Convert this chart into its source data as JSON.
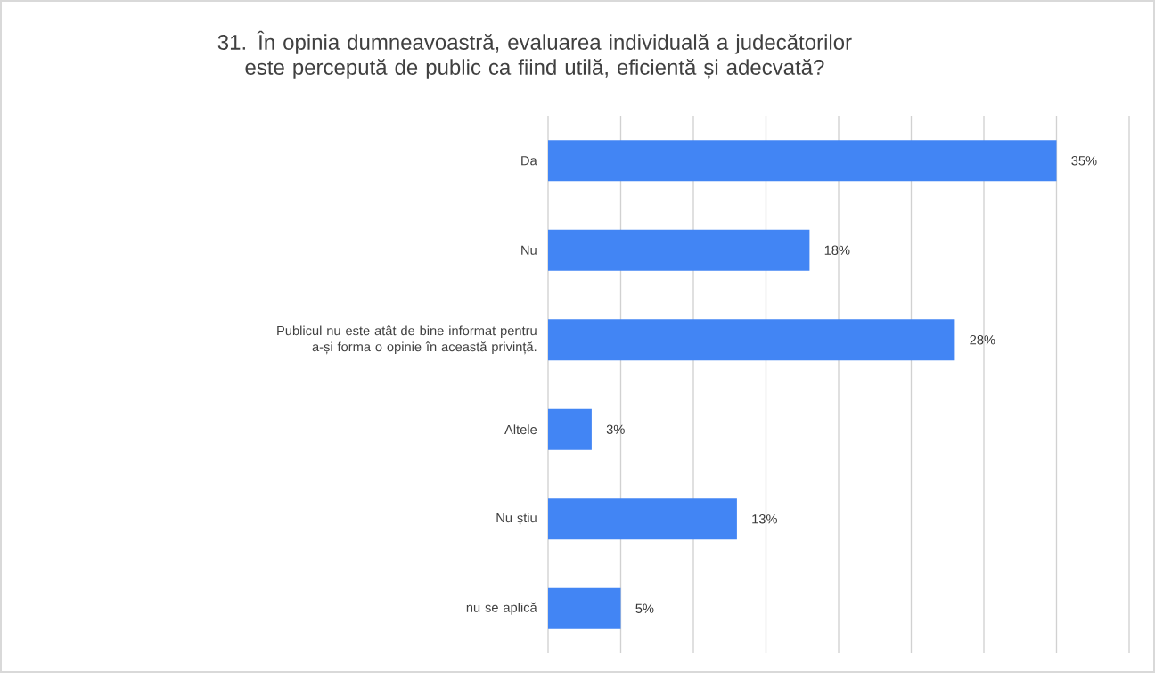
{
  "chart_data": {
    "type": "bar",
    "orientation": "horizontal",
    "title": "31. În opinia dumneavoastră, evaluarea individuală a judecătorilor este percepută de public ca fiind utilă, eficientă și adecvată?",
    "categories": [
      "Da",
      "Nu",
      "Publicul nu este atât de bine informat pentru a-și forma o opinie în această privință.",
      "Altele",
      "Nu știu",
      "nu se aplică"
    ],
    "values": [
      35,
      18,
      28,
      3,
      13,
      5
    ],
    "value_labels": [
      "35%",
      "18%",
      "28%",
      "3%",
      "13%",
      "5%"
    ],
    "color": "#4285f4",
    "xlim": [
      0,
      40
    ],
    "xticks": [
      {
        "value": 0,
        "label": null
      },
      {
        "value": 5,
        "label": null
      },
      {
        "value": 10,
        "label": null
      },
      {
        "value": 15,
        "label": null
      },
      {
        "value": 20,
        "label": null
      },
      {
        "value": 25,
        "label": null
      },
      {
        "value": 30,
        "label": null
      },
      {
        "value": 35,
        "label": null
      },
      {
        "value": 40,
        "label": null
      }
    ],
    "tick_labels": "y",
    "grid": "x"
  }
}
